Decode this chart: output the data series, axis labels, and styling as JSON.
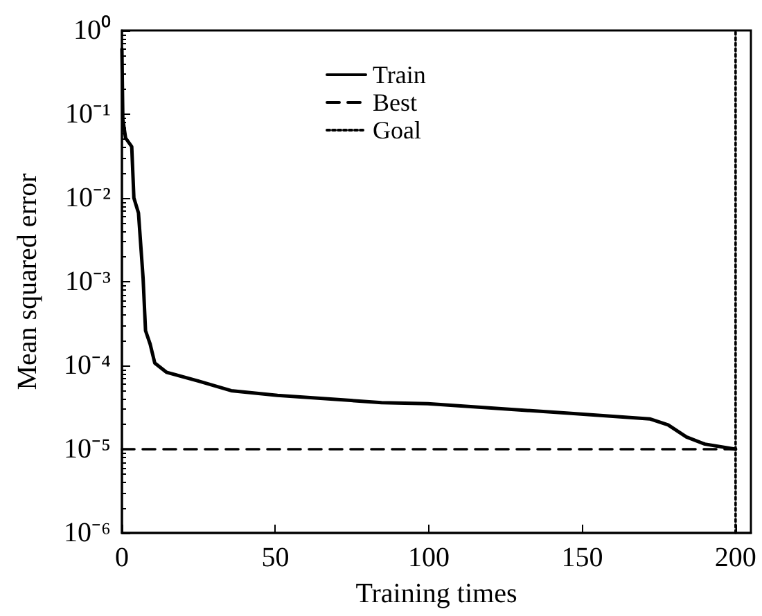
{
  "chart_data": {
    "type": "line",
    "xlabel": "Training times",
    "ylabel": "Mean squared error",
    "log": "y",
    "grid": false,
    "legend": "top",
    "marker": "none",
    "xlim": [
      0,
      205
    ],
    "xticks": [
      0,
      50,
      100,
      150,
      200
    ],
    "ylim": [
      1e-06,
      1
    ],
    "yticks": [
      {
        "value": 1,
        "label": "10⁰"
      },
      {
        "value": 0.1,
        "label": "10⁻¹"
      },
      {
        "value": 0.01,
        "label": "10⁻²"
      },
      {
        "value": 0.001,
        "label": "10⁻³"
      },
      {
        "value": 0.0001,
        "label": "10⁻⁴"
      },
      {
        "value": 1e-05,
        "label": "10⁻⁵"
      },
      {
        "value": 1e-06,
        "label": "10⁻⁶"
      }
    ],
    "series": [
      {
        "name": "Train",
        "color": "#000000",
        "line_style": "solid",
        "x": [
          0,
          0.3,
          1.2,
          3.2,
          3.9,
          5.4,
          6.9,
          7.7,
          9.2,
          10.7,
          14.5,
          25,
          35.6,
          50.7,
          84.6,
          99.7,
          144.8,
          172,
          178,
          184,
          190,
          200
        ],
        "values": [
          0.6,
          0.087,
          0.052,
          0.041,
          0.01,
          0.0066,
          0.0011,
          0.00026,
          0.00018,
          0.000107,
          8.3e-05,
          6.5e-05,
          5e-05,
          4.4e-05,
          3.6e-05,
          3.5e-05,
          2.7e-05,
          2.3e-05,
          1.95e-05,
          1.4e-05,
          1.15e-05,
          1e-05
        ]
      },
      {
        "name": "Best",
        "color": "#000000",
        "line_style": "dashed",
        "x": [
          0,
          200
        ],
        "values": [
          1e-05,
          1e-05
        ]
      },
      {
        "name": "Goal",
        "color": "#000000",
        "line_style": "dotted",
        "x": [
          200,
          200
        ],
        "values": [
          1e-06,
          1
        ]
      }
    ]
  }
}
